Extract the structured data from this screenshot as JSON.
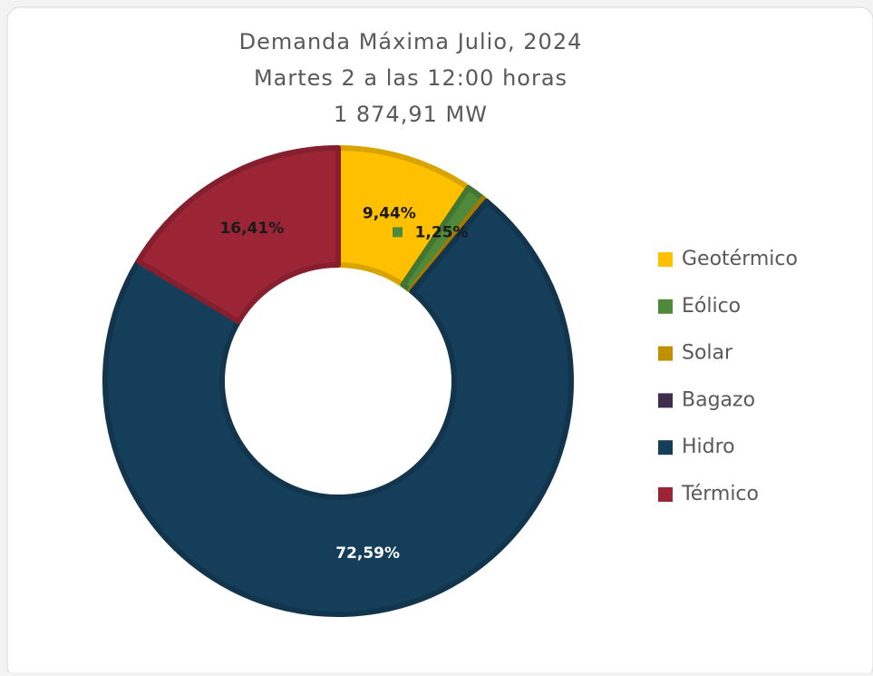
{
  "chart_data": {
    "type": "donut",
    "title": [
      "Demanda Máxima Julio, 2024",
      "Martes 2 a las 12:00 horas",
      "1 874,91 MW"
    ],
    "categories": [
      "Geotérmico",
      "Eólico",
      "Solar",
      "Bagazo",
      "Hidro",
      "Térmico"
    ],
    "values": [
      9.44,
      1.25,
      0.31,
      0,
      72.59,
      16.41
    ],
    "value_labels": [
      "9,44%",
      "1,25%",
      null,
      null,
      "72,59%",
      "16,41%"
    ],
    "colors": [
      "#ffc000",
      "#4f8a3c",
      "#bf9000",
      "#3f2d4f",
      "#153e5a",
      "#9c2535"
    ],
    "legend": "right"
  }
}
